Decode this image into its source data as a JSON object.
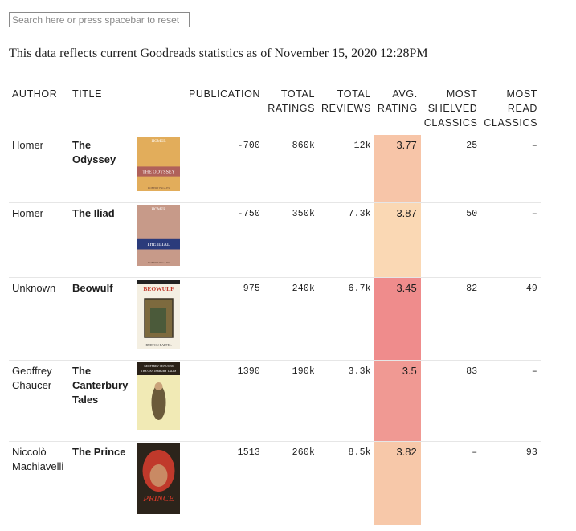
{
  "search": {
    "placeholder": "Search here or press spacebar to reset"
  },
  "subtitle": "This data reflects current Goodreads statistics as of November 15, 2020 12:28PM",
  "columns": {
    "author": "AUTHOR",
    "title": "TITLE",
    "publication": "PUBLICATION",
    "total_ratings": "TOTAL RATINGS",
    "total_reviews": "TOTAL REVIEWS",
    "avg_rating": "AVG. RATING",
    "most_shelved": "MOST SHELVED CLASSICS",
    "most_read": "MOST READ CLASSICS"
  },
  "rows": [
    {
      "author": "Homer",
      "title": "The Odyssey",
      "publication": "-700",
      "total_ratings": "860k",
      "total_reviews": "12k",
      "avg_rating": "3.77",
      "rating_color": "#f7c5a8",
      "most_shelved": "25",
      "most_read": "–",
      "cover": {
        "bg": "#e2ad5b",
        "band": "#b0615a",
        "top_text": "HOMER",
        "band_text": "THE ODYSSEY",
        "author_text": "ROBERT FAGLES"
      }
    },
    {
      "author": "Homer",
      "title": "The Iliad",
      "publication": "-750",
      "total_ratings": "350k",
      "total_reviews": "7.3k",
      "avg_rating": "3.87",
      "rating_color": "#fad8b4",
      "most_shelved": "50",
      "most_read": "–",
      "cover": {
        "bg": "#c79a89",
        "band": "#2b3b7b",
        "top_text": "HOMER",
        "band_text": "THE ILIAD",
        "author_text": "ROBERT FAGLES"
      }
    },
    {
      "author": "Unknown",
      "title": "Beowulf",
      "publication": "975",
      "total_ratings": "240k",
      "total_reviews": "6.7k",
      "avg_rating": "3.45",
      "rating_color": "#ef8c8c",
      "most_shelved": "82",
      "most_read": "49",
      "cover": {
        "bg": "#f4efe2",
        "band": "#3d3426",
        "top_text": "BEOWULF",
        "band_text": "",
        "author_text": "BURTON RAFFEL"
      }
    },
    {
      "author": "Geoffrey Chaucer",
      "title": "The Canterbury Tales",
      "publication": "1390",
      "total_ratings": "190k",
      "total_reviews": "3.3k",
      "avg_rating": "3.5",
      "rating_color": "#f09993",
      "most_shelved": "83",
      "most_read": "–",
      "cover": {
        "bg": "#f1eab5",
        "band": "#2a2118",
        "top_text": "GEOFFREY CHAUCER",
        "band_text": "THE CANTERBURY TALES",
        "author_text": ""
      }
    },
    {
      "author": "Niccolò Machiavelli",
      "title": "The Prince",
      "publication": "1513",
      "total_ratings": "260k",
      "total_reviews": "8.5k",
      "avg_rating": "3.82",
      "rating_color": "#f7c8a9",
      "most_shelved": "–",
      "most_read": "93",
      "cover": {
        "bg": "#2c241b",
        "band": "#b3291f",
        "top_text": "",
        "band_text": "PRINCE",
        "author_text": ""
      }
    }
  ]
}
